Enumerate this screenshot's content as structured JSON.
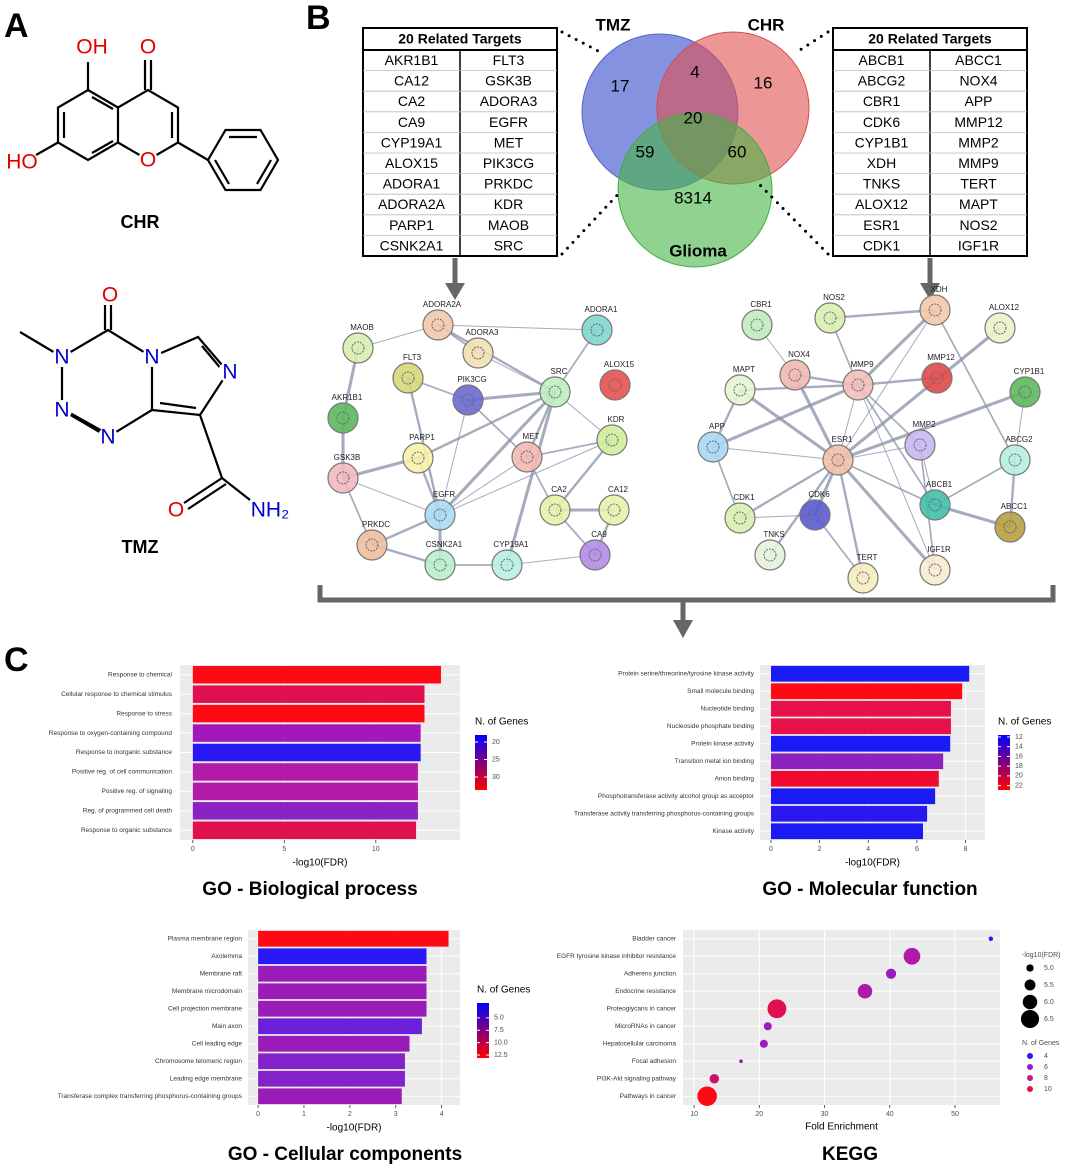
{
  "panel_labels": [
    "A",
    "B",
    "C"
  ],
  "molecules": [
    {
      "name": "CHR",
      "atoms": [
        "OH",
        "O",
        "HO",
        "O"
      ]
    },
    {
      "name": "TMZ",
      "atoms": [
        "O",
        "N",
        "N",
        "N",
        "N",
        "N",
        "O",
        "NH₂"
      ]
    }
  ],
  "venn": {
    "sets": [
      "TMZ",
      "CHR",
      "Glioma"
    ],
    "regions": [
      17,
      4,
      16,
      20,
      59,
      60,
      8314
    ]
  },
  "tables": [
    {
      "title": "20 Related Targets",
      "columns": [
        [
          "AKR1B1",
          "CA12",
          "CA2",
          "CA9",
          "CYP19A1",
          "ALOX15",
          "ADORA1",
          "ADORA2A",
          "PARP1",
          "CSNK2A1"
        ],
        [
          "FLT3",
          "GSK3B",
          "ADORA3",
          "EGFR",
          "MET",
          "PIK3CG",
          "PRKDC",
          "KDR",
          "MAOB",
          "SRC"
        ]
      ]
    },
    {
      "title": "20 Related Targets",
      "columns": [
        [
          "ABCB1",
          "ABCG2",
          "CBR1",
          "CDK6",
          "CYP1B1",
          "XDH",
          "TNKS",
          "ALOX12",
          "ESR1",
          "CDK1"
        ],
        [
          "ABCC1",
          "NOX4",
          "APP",
          "MMP12",
          "MMP2",
          "MMP9",
          "TERT",
          "MAPT",
          "NOS2",
          "IGF1R"
        ]
      ]
    }
  ],
  "networks": [
    {
      "nodes": [
        "ADORA2A",
        "MAOB",
        "ADORA3",
        "ADORA1",
        "ALOX15",
        "FLT3",
        "PIK3CG",
        "SRC",
        "AKR1B1",
        "KDR",
        "PARP1",
        "MET",
        "GSK3B",
        "CA2",
        "CA12",
        "EGFR",
        "PRKDC",
        "CSNK2A1",
        "CYP19A1",
        "CA9"
      ]
    },
    {
      "nodes": [
        "CBR1",
        "NOS2",
        "XDH",
        "ALOX12",
        "MAPT",
        "NOX4",
        "MMP9",
        "MMP12",
        "CYP1B1",
        "APP",
        "MMP2",
        "ABCG2",
        "ESR1",
        "CDK1",
        "CDK6",
        "ABCB1",
        "ABCC1",
        "TNKS",
        "TERT",
        "IGF1R"
      ]
    }
  ],
  "chart_data": [
    {
      "type": "bar",
      "title": "GO - Biological process",
      "xlabel": "-log10(FDR)",
      "categories": [
        "Response to chemical",
        "Cellular response to chemical stimulus",
        "Response to stress",
        "Response to oxygen-containing compound",
        "Response to inorganic substance",
        "Positive reg. of cell communication",
        "Positive reg. of signaling",
        "Reg. of programmed cell death",
        "Response to organic substance"
      ],
      "values": [
        13.56,
        12.66,
        12.66,
        12.45,
        12.45,
        12.3,
        12.3,
        12.3,
        12.2
      ],
      "colors": [
        "#ff0a14",
        "#e0104f",
        "#ff0a14",
        "#a318b8",
        "#2a19f5",
        "#b21aa8",
        "#b21aa8",
        "#8a22c4",
        "#e0104f"
      ],
      "xlim": [
        -0.7,
        14.6
      ],
      "xticks": [
        0,
        5,
        10
      ],
      "grid": true,
      "legend": {
        "title": "N. of Genes",
        "range": [
          18,
          33.7
        ],
        "colors": [
          "#0000ff",
          "#ff0000"
        ],
        "ticks": [
          20,
          25,
          30
        ]
      }
    },
    {
      "type": "bar",
      "title": "GO - Molecular function",
      "xlabel": "-log10(FDR)",
      "categories": [
        "Protein serine/threonine/tyrosine kinase activity",
        "Small molecule binding",
        "Nucleotide binding",
        "Nucleoside phosphate binding",
        "Protein kinase activity",
        "Transition metal ion binding",
        "Anion binding",
        "Phosphotransferase activity alcohol group as acceptor",
        "Transferase activity transferring phosphorus-containing groups",
        "Kinase activity"
      ],
      "values": [
        8.15,
        7.86,
        7.4,
        7.4,
        7.37,
        7.08,
        6.9,
        6.75,
        6.42,
        6.25
      ],
      "colors": [
        "#1a1af5",
        "#ff0a14",
        "#e8104a",
        "#e8104a",
        "#1a1af5",
        "#8e22c0",
        "#f00c30",
        "#1a1af5",
        "#2a19ee",
        "#1a1af5"
      ],
      "xlim": [
        -0.45,
        8.8
      ],
      "xticks": [
        0,
        2,
        4,
        6,
        8
      ],
      "grid": true,
      "legend": {
        "title": "N. of Genes",
        "range": [
          11.6,
          22.9
        ],
        "colors": [
          "#0000ff",
          "#ff0000"
        ],
        "ticks": [
          12,
          14,
          16,
          18,
          20,
          22
        ]
      }
    },
    {
      "type": "bar",
      "title": "GO - Cellular components",
      "xlabel": "-log10(FDR)",
      "categories": [
        "Plasma membrane region",
        "Axolemma",
        "Membrane raft",
        "Membrane microdomain",
        "Cell projection membrane",
        "Main axon",
        "Cell leading edge",
        "Chromosome telomeric region",
        "Leading edge membrane",
        "Transferase complex transferring phosphorus-containing groups"
      ],
      "values": [
        4.15,
        3.67,
        3.67,
        3.67,
        3.67,
        3.57,
        3.3,
        3.2,
        3.2,
        3.13
      ],
      "colors": [
        "#ff0a14",
        "#2a19f5",
        "#9a1cb8",
        "#9a1cb8",
        "#9a1cb8",
        "#6a20d8",
        "#9a1cb8",
        "#8222c8",
        "#8222c8",
        "#9a1cb8"
      ],
      "xlim": [
        -0.22,
        4.4
      ],
      "xticks": [
        0,
        1,
        2,
        3,
        4
      ],
      "grid": true,
      "legend": {
        "title": "N. of Genes",
        "range": [
          2.0,
          13.1
        ],
        "colors": [
          "#0000ff",
          "#ff0000"
        ],
        "ticks": [
          {
            "value": 5,
            "label": "5.0"
          },
          7.5,
          {
            "value": 10,
            "label": "10.0"
          },
          12.5
        ]
      }
    },
    {
      "type": "scatter",
      "title": "KEGG",
      "xlabel": "Fold Enrichment",
      "categories": [
        "Bladder cancer",
        "EGFR tyrosine kinase inhibitor resistance",
        "Adherens junction",
        "Endocrine resistance",
        "Proteoglycans in cancer",
        "MicroRNAs in cancer",
        "Hepatocellular carcinoma",
        "Focal adhesion",
        "PI3K-Akt signaling pathway",
        "Pathways in cancer"
      ],
      "x": [
        55.5,
        43.4,
        40.2,
        36.2,
        22.7,
        21.3,
        20.7,
        17.2,
        13.1,
        12.0
      ],
      "sizes": [
        4.6,
        6.3,
        5.4,
        6.0,
        6.6,
        5.1,
        5.1,
        4.5,
        5.3,
        6.7
      ],
      "colors": [
        "#2020e8",
        "#b01aa8",
        "#9a1cc0",
        "#b01aa8",
        "#e01050",
        "#9a1cc0",
        "#9a1cc0",
        "#b01aa8",
        "#d01070",
        "#ff0a14"
      ],
      "xlim": [
        8.3,
        56.9
      ],
      "xticks": [
        10,
        20,
        30,
        40,
        50
      ],
      "grid": true,
      "size_legend": {
        "title": "-log10(FDR)",
        "values": [
          {
            "value": 5,
            "label": "5.0"
          },
          5.5,
          {
            "value": 6,
            "label": "6.0"
          },
          6.5
        ]
      },
      "color_legend": {
        "title": "N. of Genes",
        "values": [
          4,
          6,
          8,
          10
        ],
        "colors": [
          "#2020e8",
          "#9a1cc0",
          "#c01890",
          "#e8103c"
        ]
      }
    }
  ]
}
